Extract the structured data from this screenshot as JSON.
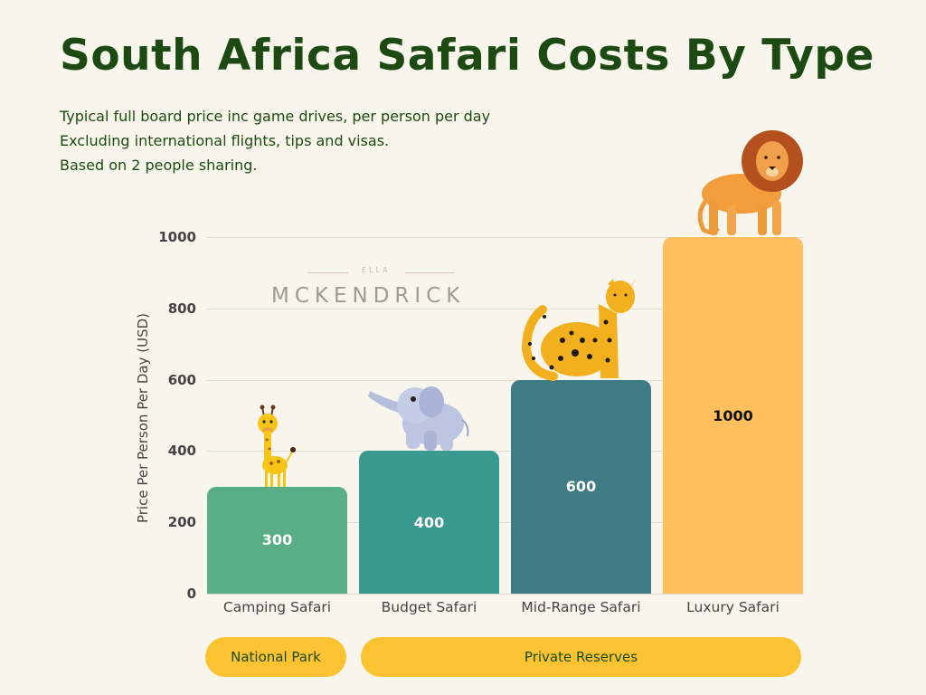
{
  "title": "South Africa Safari Costs By Type",
  "subtitle_lines": [
    "Typical full board price inc game drives, per person per day",
    "Excluding international flights, tips and visas.",
    "Based on 2 people sharing."
  ],
  "watermark": {
    "small": "ELLA",
    "big": "MCKENDRICK"
  },
  "groups": [
    {
      "label": "National Park",
      "color": "#fbc332"
    },
    {
      "label": "Private Reserves",
      "color": "#fbc332"
    }
  ],
  "animals": [
    "giraffe-icon",
    "elephant-icon",
    "leopard-icon",
    "lion-icon"
  ],
  "chart_data": {
    "type": "bar",
    "title": "South Africa Safari Costs By Type",
    "xlabel": "",
    "ylabel": "Price Per Person Per Day (USD)",
    "categories": [
      "Camping Safari",
      "Budget Safari",
      "Mid-Range Safari",
      "Luxury Safari"
    ],
    "values": [
      300,
      400,
      600,
      1000
    ],
    "value_labels": [
      "300",
      "400",
      "600",
      "1000"
    ],
    "colors": [
      "#5aae87",
      "#3a9a90",
      "#3e7b85",
      "#ffbf5c"
    ],
    "ylim": [
      0,
      1000
    ],
    "yticks": [
      "0",
      "200",
      "400",
      "600",
      "800",
      "1000"
    ],
    "grid": true,
    "category_groups": [
      {
        "label": "National Park",
        "categories": [
          "Camping Safari"
        ]
      },
      {
        "label": "Private Reserves",
        "categories": [
          "Budget Safari",
          "Mid-Range Safari",
          "Luxury Safari"
        ]
      }
    ]
  }
}
